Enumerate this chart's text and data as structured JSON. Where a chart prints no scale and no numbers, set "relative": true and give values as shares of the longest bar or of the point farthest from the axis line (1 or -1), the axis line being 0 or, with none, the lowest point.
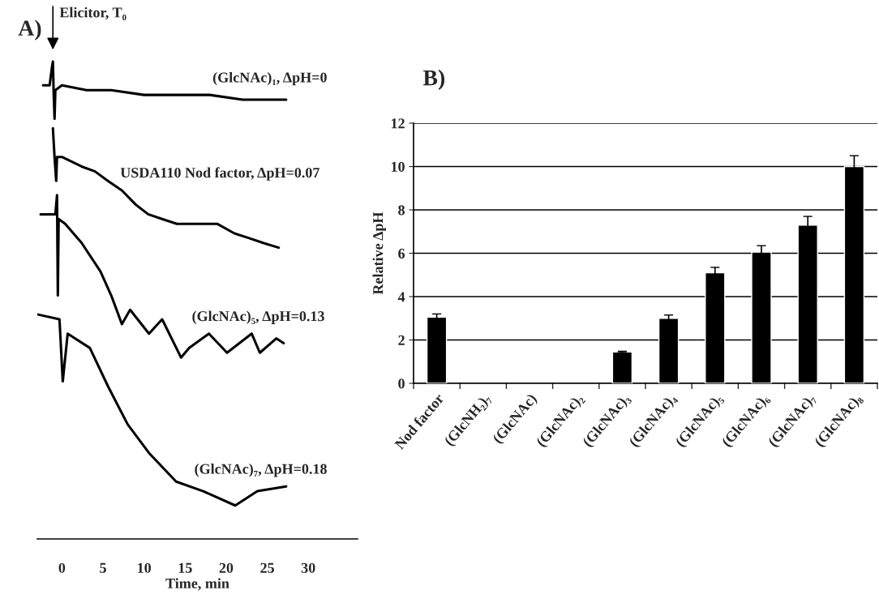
{
  "chart_data": [
    {
      "type": "line",
      "title": "A)",
      "xlabel": "Time, min",
      "relative": true,
      "xlim": [
        -3,
        36
      ],
      "xticks": [
        0,
        5,
        10,
        15,
        20,
        25,
        30
      ],
      "grid": false,
      "legend": false,
      "marker": "none",
      "line_style": "solid",
      "annotations": [
        {
          "text": "Elicitor, T₀",
          "x": -1.1,
          "y": 1.0
        }
      ],
      "series": [
        {
          "name": "(GlcNAc)₁, ΔpH=0",
          "color": "#000000",
          "x": [
            -2.3,
            -1.5,
            -1.2,
            -1.1,
            -1.0,
            -0.9,
            -0.8,
            0,
            3,
            6,
            10,
            14,
            18,
            22,
            27.3
          ],
          "values": [
            0.95,
            0.95,
            0.99,
            1.0,
            0.93,
            0.88,
            0.94,
            0.95,
            0.94,
            0.94,
            0.93,
            0.93,
            0.93,
            0.92,
            0.92
          ]
        },
        {
          "name": "USDA110 Nod factor, ΔpH=0.07",
          "color": "#000000",
          "x": [
            -1.1,
            -0.9,
            -0.7,
            -0.6,
            0,
            2.4,
            4,
            5.6,
            7.3,
            9,
            10.5,
            12.2,
            14,
            16,
            18.9,
            21,
            22.8,
            24.5,
            26.4
          ],
          "values": [
            0.86,
            0.8,
            0.75,
            0.8,
            0.8,
            0.78,
            0.77,
            0.75,
            0.73,
            0.7,
            0.68,
            0.67,
            0.66,
            0.66,
            0.66,
            0.64,
            0.63,
            0.62,
            0.61
          ]
        },
        {
          "name": "(GlcNAc)₅, ΔpH=0.13",
          "color": "#000000",
          "x": [
            -2.6,
            -1.5,
            -0.8,
            -0.6,
            -0.5,
            -0.4,
            0.4,
            2.4,
            4.7,
            6,
            7.3,
            8.3,
            10.6,
            12.2,
            14.5,
            15.5,
            17.9,
            20.1,
            23.1,
            24.1,
            26.1,
            27
          ],
          "values": [
            0.68,
            0.68,
            0.68,
            0.72,
            0.51,
            0.67,
            0.66,
            0.62,
            0.56,
            0.51,
            0.45,
            0.48,
            0.43,
            0.46,
            0.38,
            0.4,
            0.43,
            0.39,
            0.43,
            0.39,
            0.42,
            0.41
          ]
        },
        {
          "name": "(GlcNAc)₇, ΔpH=0.18",
          "color": "#000000",
          "x": [
            -2.9,
            -0.3,
            0.1,
            0.7,
            3.4,
            5.6,
            8,
            10.6,
            13.9,
            17.2,
            21.1,
            23.8,
            27.3
          ],
          "values": [
            0.47,
            0.46,
            0.33,
            0.43,
            0.4,
            0.32,
            0.24,
            0.18,
            0.12,
            0.1,
            0.07,
            0.1,
            0.11
          ]
        }
      ]
    },
    {
      "type": "bar",
      "title": "B)",
      "ylabel": "Relative ΔpH",
      "ylim": [
        0,
        12
      ],
      "yticks": [
        0,
        2,
        4,
        6,
        8,
        10,
        12
      ],
      "grid": "y",
      "legend": false,
      "categories": [
        "Nod factor",
        "(GlcNH₂)₇",
        "(GlcNAc)",
        "(GlcNAc)₂",
        "(GlcNAc)₃",
        "(GlcNAc)₄",
        "(GlcNAc)₅",
        "(GlcNAc)₆",
        "(GlcNAc)₇",
        "(GlcNAc)₈"
      ],
      "series": [
        {
          "color": "#000000",
          "values": [
            3.05,
            null,
            null,
            null,
            1.45,
            3.0,
            5.1,
            6.05,
            7.3,
            10.0
          ],
          "errors": [
            0.15,
            null,
            null,
            null,
            0.03,
            0.15,
            0.25,
            0.3,
            0.4,
            0.5
          ]
        }
      ]
    }
  ]
}
